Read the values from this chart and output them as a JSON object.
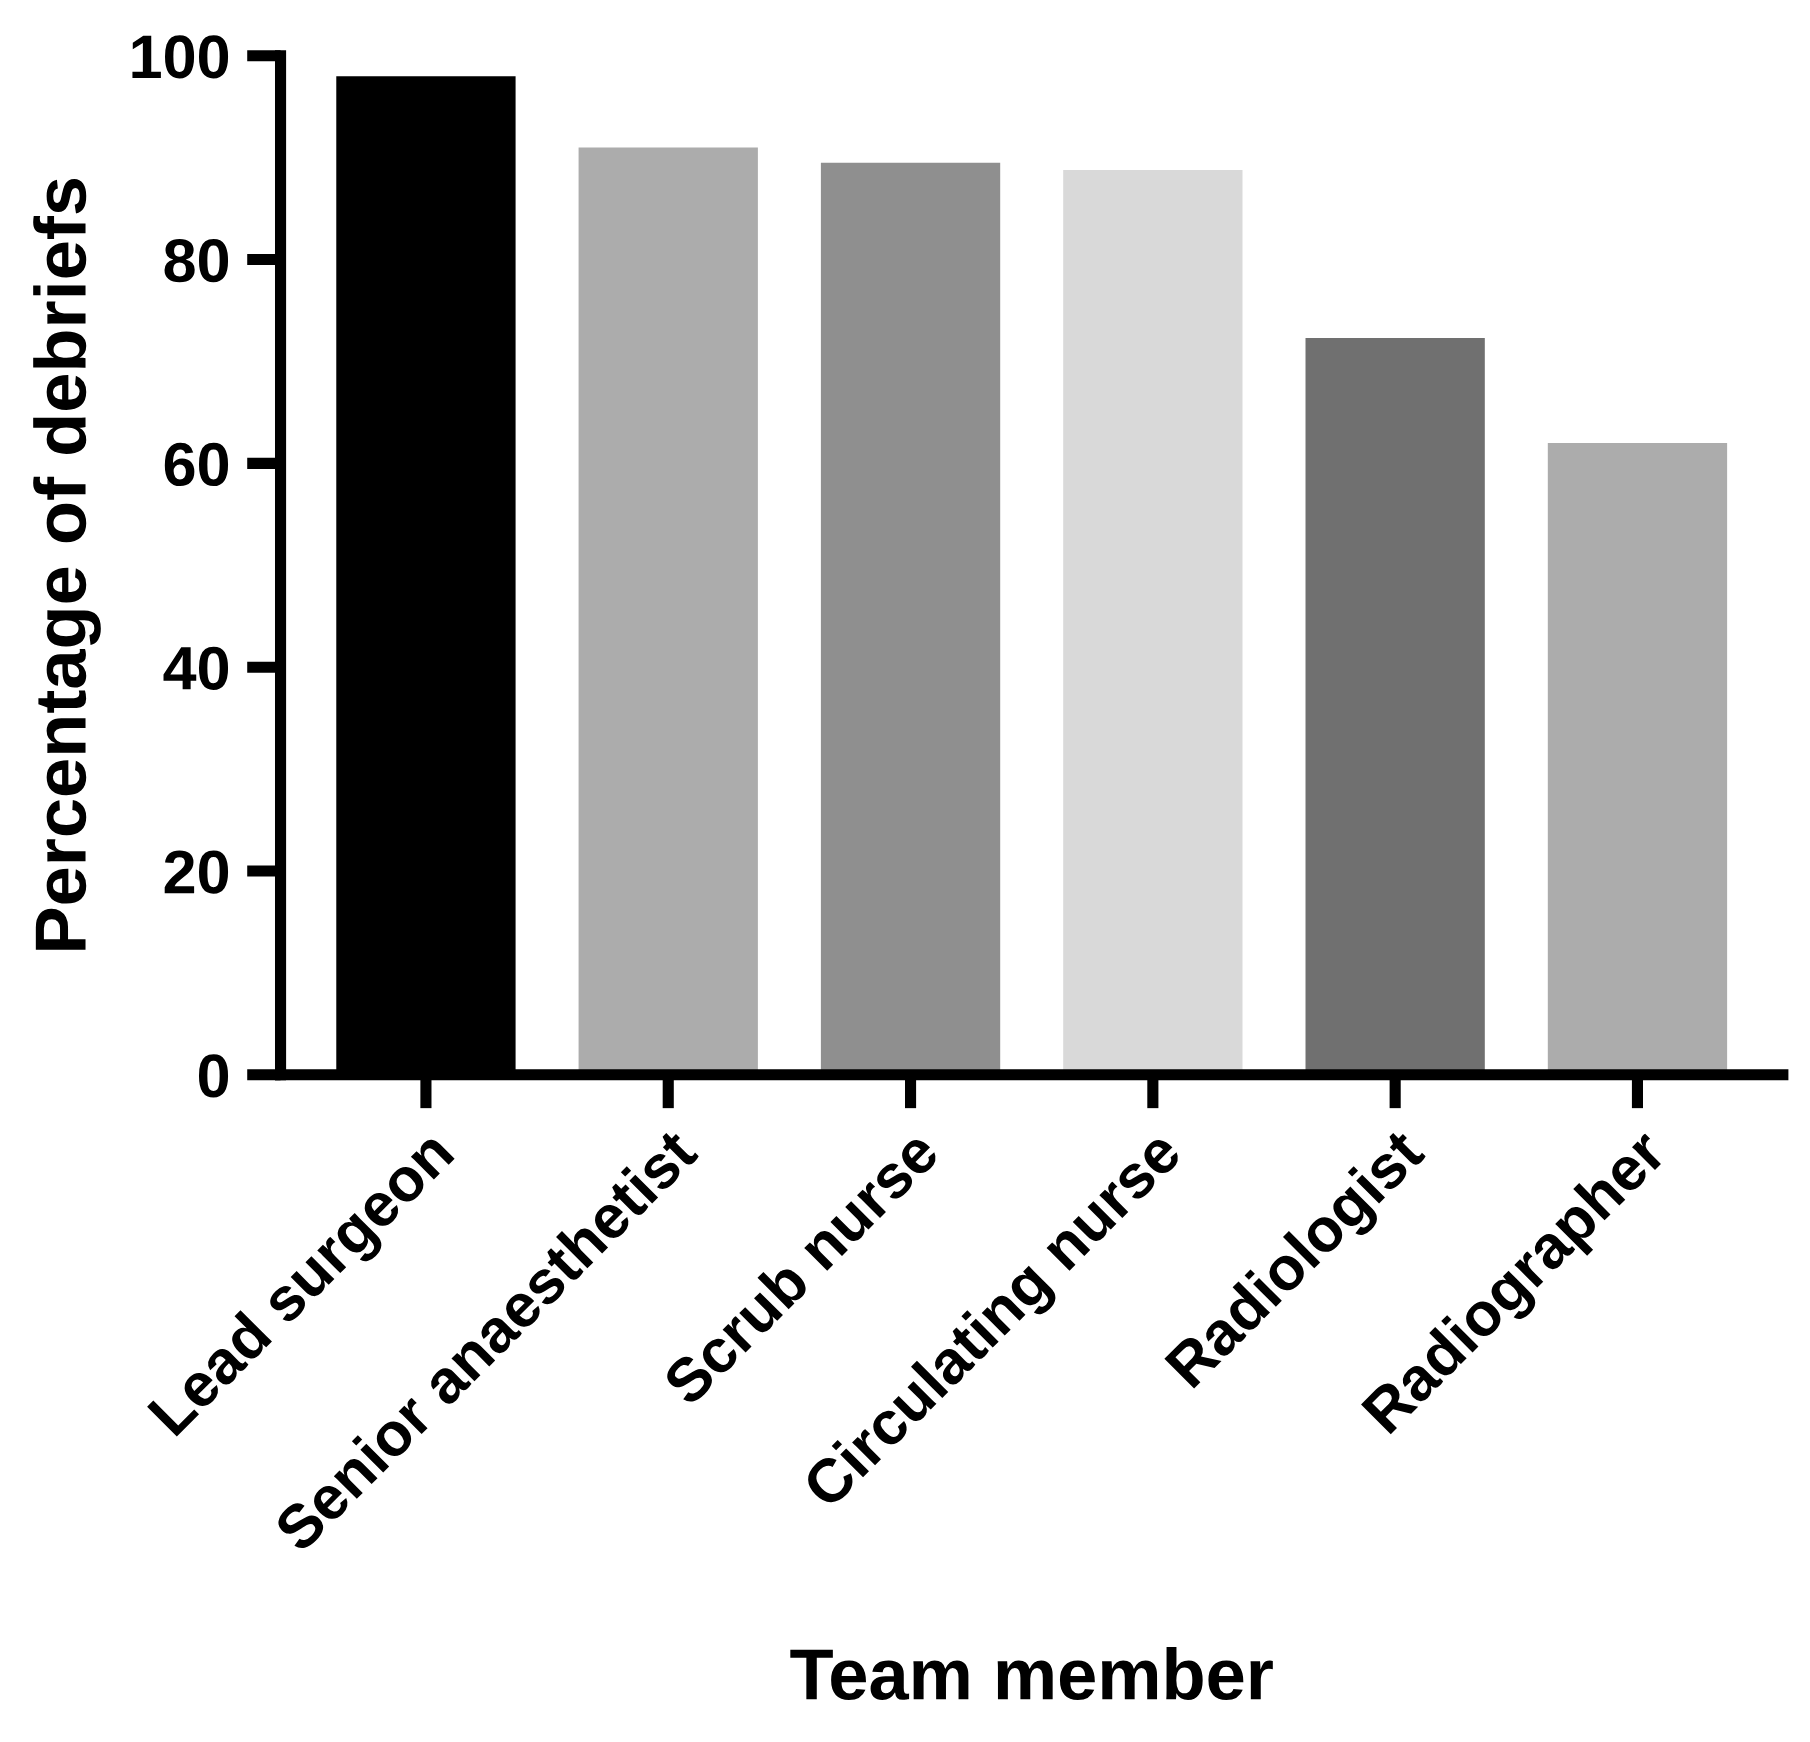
{
  "chart_data": {
    "type": "bar",
    "xlabel": "Team member",
    "ylabel": "Percentage of debriefs",
    "categories": [
      "Lead surgeon",
      "Senior anaesthetist",
      "Scrub nurse",
      "Circulating nurse",
      "Radiologist",
      "Radiographer"
    ],
    "values": [
      98,
      91,
      89.5,
      88.8,
      72.3,
      62
    ],
    "colors": [
      "#000000",
      "#acacac",
      "#8f8f8f",
      "#d9d9d9",
      "#707070",
      "#acacac"
    ],
    "ylim": [
      0,
      100
    ],
    "yticks": [
      0,
      20,
      40,
      60,
      80,
      100
    ],
    "grid": false,
    "legend": false
  }
}
